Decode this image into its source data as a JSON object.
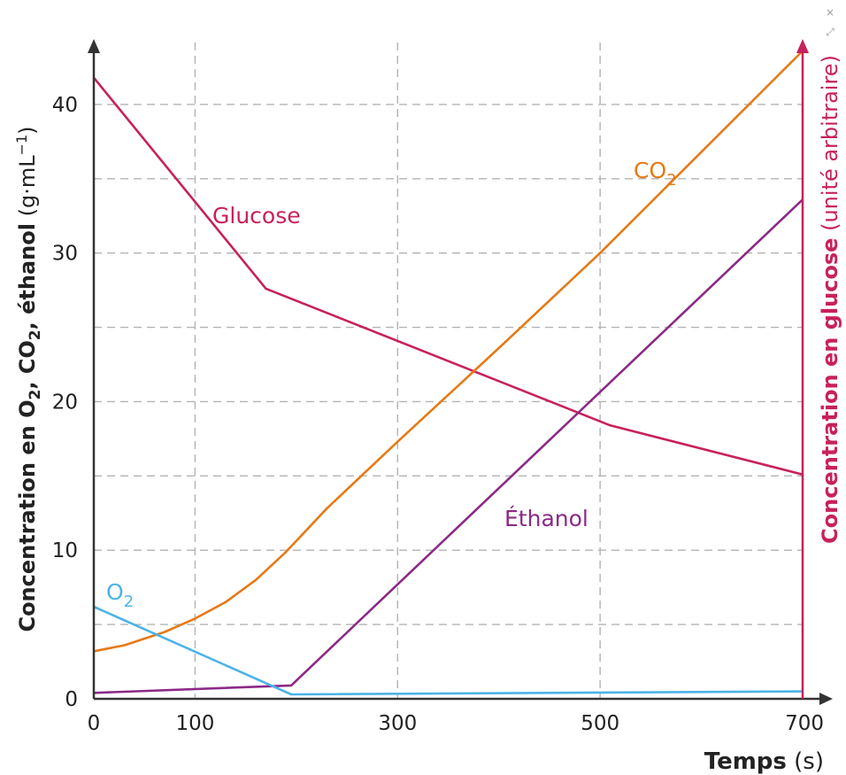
{
  "chart_data": {
    "type": "line",
    "xlabel": {
      "bold": "Temps",
      "unit": " (s)"
    },
    "ylabel_left": {
      "bold_a": "Concentration en O",
      "sub1": "2",
      "bold_b": ", CO",
      "sub2": "2",
      "bold_c": ", éthanol",
      "unit": " (g·mL",
      "sup": "−1",
      "unit_end": ")"
    },
    "ylabel_right": {
      "bold": "Concentration en glucose",
      "unit": " (unité arbitraire)"
    },
    "x_ticks": [
      "0",
      "100",
      "300",
      "500",
      "700"
    ],
    "y_ticks": [
      "0",
      "10",
      "20",
      "30",
      "40"
    ],
    "xlim": [
      0,
      700
    ],
    "ylim": [
      0,
      45
    ],
    "grid": true,
    "series": [
      {
        "name": "Glucose",
        "label": "Glucose",
        "color": "#c8215c",
        "points": [
          [
            0,
            41.8
          ],
          [
            170,
            27.6
          ],
          [
            510,
            18.4
          ],
          [
            700,
            15.1
          ]
        ]
      },
      {
        "name": "CO2",
        "label": "CO",
        "label_sub": "2",
        "color": "#e57a17",
        "points": [
          [
            0,
            3.2
          ],
          [
            30,
            3.6
          ],
          [
            70,
            4.5
          ],
          [
            100,
            5.4
          ],
          [
            130,
            6.5
          ],
          [
            160,
            8.0
          ],
          [
            190,
            9.9
          ],
          [
            230,
            12.8
          ],
          [
            300,
            17.3
          ],
          [
            400,
            23.6
          ],
          [
            500,
            30.0
          ],
          [
            600,
            36.8
          ],
          [
            700,
            43.6
          ]
        ]
      },
      {
        "name": "Éthanol",
        "label": "Éthanol",
        "color": "#8b2a87",
        "points": [
          [
            0,
            0.4
          ],
          [
            195,
            0.9
          ],
          [
            700,
            33.6
          ]
        ]
      },
      {
        "name": "O2",
        "label": "O",
        "label_sub": "2",
        "color": "#4db3e6",
        "points": [
          [
            0,
            6.2
          ],
          [
            195,
            0.3
          ],
          [
            700,
            0.5
          ]
        ]
      }
    ]
  },
  "ui": {
    "close_glyph": "×",
    "resize_glyph": "⤢"
  }
}
